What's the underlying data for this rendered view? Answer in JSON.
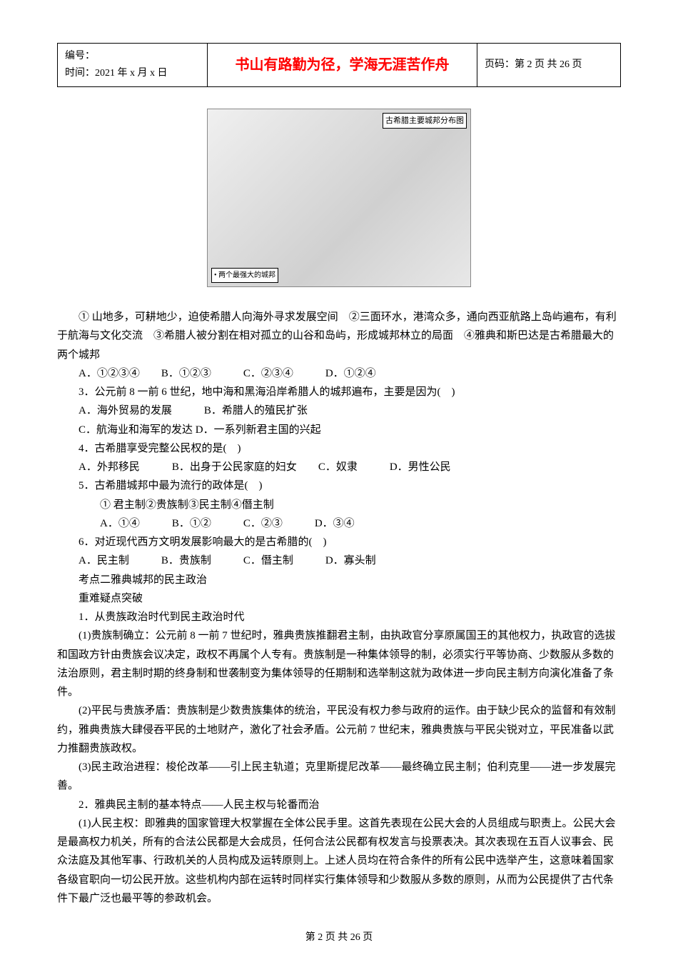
{
  "header": {
    "id_label": "编号：",
    "time_label": "时间：2021 年 x 月 x 日",
    "motto": "书山有路勤为径，学海无涯苦作舟",
    "page_label": "页码：第 2 页 共 26 页",
    "motto_color": "#ff0000"
  },
  "map": {
    "legend": "古希腊主要城邦分布图",
    "bottom_label": "• 两个最强大的城邦"
  },
  "paragraphs": {
    "p1": "① 山地多，可耕地少，迫使希腊人向海外寻求发展空间　②三面环水，港湾众多，通向西亚航路上岛屿遍布，有利于航海与文化交流　③希腊人被分割在相对孤立的山谷和岛屿，形成城邦林立的局面　④雅典和斯巴达是古希腊最大的两个城邦",
    "p2": "A．①②③④　　B．①②③　　　C．②③④　　　D．①②④",
    "p3": "3．公元前 8 一前 6 世纪，地中海和黑海沿岸希腊人的城邦遍布，主要是因为(　)",
    "p4": "A．海外贸易的发展　　　B．希腊人的殖民扩张",
    "p5": "C．航海业和海军的发达 D．一系列新君主国的兴起",
    "p6": "4．古希腊享受完整公民权的是(　)",
    "p7": "A．外邦移民　　　B．出身于公民家庭的妇女　　C．奴隶　　　D．男性公民",
    "p8": "5．古希腊城邦中最为流行的政体是(　)",
    "p9": "① 君主制②贵族制③民主制④僭主制",
    "p10": "A．①④　　　B．①②　　　C．②③　　　D．③④",
    "p11": "6．对近现代西方文明发展影响最大的是古希腊的(　)",
    "p12": "A．民主制　　　B．贵族制　　　C．僭主制　　　D．寡头制",
    "p13": "考点二雅典城邦的民主政治",
    "p14": "重难疑点突破",
    "p15": "1．从贵族政治时代到民主政治时代",
    "p16": "(1)贵族制确立：公元前 8 一前 7 世纪时，雅典贵族推翻君主制，由执政官分享原属国王的其他权力，执政官的选拔和国政方针由贵族会议决定，政权不再属个人专有。贵族制是一种集体领导的制，必须实行平等协商、少数服从多数的法治原则，君主制时期的终身制和世袭制变为集体领导的任期制和选举制这就为政体进一步向民主制方向演化准备了条件。",
    "p17": "(2)平民与贵族矛盾：贵族制是少数贵族集体的统治，平民没有权力参与政府的运作。由于缺少民众的监督和有效制约，雅典贵族大肆侵吞平民的土地财产，激化了社会矛盾。公元前 7 世纪末，雅典贵族与平民尖锐对立，平民准备以武力推翻贵族政权。",
    "p18": "(3)民主政治进程：梭伦改革――引上民主轨道；克里斯提尼改革――最终确立民主制；伯利克里――进一步发展完善。",
    "p19": "2．雅典民主制的基本特点――人民主权与轮番而治",
    "p20": "(1)人民主权：即雅典的国家管理大权掌握在全体公民手里。这首先表现在公民大会的人员组成与职责上。公民大会是最高权力机关，所有的合法公民都是大会成员，任何合法公民都有权发言与投票表决。其次表现在五百人议事会、民众法庭及其他军事、行政机关的人员构成及运转原则上。上述人员均在符合条件的所有公民中选举产生，这意味着国家各级官职向一切公民开放。这些机构内部在运转时同样实行集体领导和少数服从多数的原则，从而为公民提供了古代条件下最广泛也最平等的参政机会。"
  },
  "footer": {
    "text": "第 2 页 共 26 页"
  }
}
